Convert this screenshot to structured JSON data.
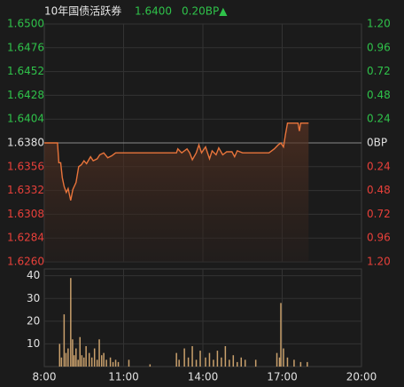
{
  "header": {
    "name": "10年国债活跃券",
    "price": "1.6400",
    "change": "0.20BP▲"
  },
  "chart_data": [
    {
      "type": "line",
      "xlim": [
        8,
        20
      ],
      "ylim": [
        1.626,
        1.65
      ],
      "yticks": [
        {
          "value": 1.65,
          "label": "1.6500"
        },
        1.6476,
        1.6452,
        1.6428,
        1.6404,
        {
          "value": 1.638,
          "label": "1.6380"
        },
        1.6356,
        1.6332,
        1.6308,
        1.6284,
        {
          "value": 1.626,
          "label": "1.6260"
        }
      ],
      "y2lim": [
        -1.2,
        1.2
      ],
      "y2ticks": [
        {
          "value": 1.2,
          "label": "1.20"
        },
        0.96,
        0.72,
        0.48,
        0.24,
        {
          "value": 0,
          "label": "0BP"
        },
        {
          "value": -0.24,
          "label": "0.24"
        },
        {
          "value": -0.48,
          "label": "0.48"
        },
        {
          "value": -0.72,
          "label": "0.72"
        },
        {
          "value": -0.96,
          "label": "0.96"
        },
        {
          "value": -1.2,
          "label": "1.20"
        }
      ],
      "up_color": "#2fc24a",
      "down_color": "#e8403a",
      "flat_color": "#e0e0e0",
      "color": "#e8743b",
      "grid": true,
      "x": [
        8.0,
        8.5,
        8.55,
        8.62,
        8.68,
        8.75,
        8.83,
        8.9,
        9.0,
        9.08,
        9.2,
        9.3,
        9.4,
        9.5,
        9.6,
        9.75,
        9.85,
        10.0,
        10.1,
        10.25,
        10.4,
        10.55,
        10.7,
        11.0,
        12.0,
        13.0,
        13.05,
        13.2,
        13.4,
        13.5,
        13.6,
        13.75,
        13.85,
        13.95,
        14.1,
        14.25,
        14.35,
        14.5,
        14.6,
        14.75,
        14.9,
        15.1,
        15.2,
        15.3,
        15.5,
        16.0,
        16.5,
        16.7,
        16.85,
        16.95,
        17.05,
        17.12,
        17.2,
        17.6,
        17.65,
        17.7,
        18.0
      ],
      "values": [
        1.638,
        1.638,
        1.636,
        1.636,
        1.6345,
        1.6336,
        1.633,
        1.6334,
        1.6322,
        1.6333,
        1.634,
        1.6356,
        1.6358,
        1.6362,
        1.6359,
        1.6366,
        1.6362,
        1.6364,
        1.6368,
        1.637,
        1.6365,
        1.6367,
        1.637,
        1.637,
        1.637,
        1.637,
        1.6374,
        1.637,
        1.6374,
        1.637,
        1.6363,
        1.637,
        1.6378,
        1.637,
        1.6376,
        1.6364,
        1.6372,
        1.6368,
        1.6375,
        1.6368,
        1.6371,
        1.6371,
        1.6366,
        1.6372,
        1.637,
        1.637,
        1.637,
        1.6374,
        1.6378,
        1.638,
        1.6376,
        1.6388,
        1.64,
        1.64,
        1.6392,
        1.64,
        1.64
      ]
    },
    {
      "type": "bar",
      "xlim": [
        8,
        20
      ],
      "xticks": [
        {
          "value": 8,
          "label": "8:00"
        },
        {
          "value": 11,
          "label": "11:00"
        },
        {
          "value": 14,
          "label": "14:00"
        },
        {
          "value": 17,
          "label": "17:00"
        },
        {
          "value": 20,
          "label": "20:00"
        }
      ],
      "ylim": [
        0,
        43
      ],
      "yticks": [
        10,
        20,
        30,
        40
      ],
      "color": "#c9a06c",
      "grid": true,
      "x": [
        8.58,
        8.65,
        8.75,
        8.82,
        8.9,
        9.0,
        9.07,
        9.13,
        9.2,
        9.28,
        9.35,
        9.42,
        9.5,
        9.58,
        9.7,
        9.8,
        9.9,
        10.0,
        10.08,
        10.17,
        10.25,
        10.35,
        10.5,
        10.6,
        10.7,
        10.8,
        11.2,
        12.0,
        13.0,
        13.1,
        13.3,
        13.45,
        13.6,
        13.75,
        13.9,
        14.1,
        14.25,
        14.4,
        14.55,
        14.7,
        14.85,
        15.0,
        15.15,
        15.3,
        15.45,
        15.6,
        16.0,
        16.8,
        16.9,
        16.95,
        17.05,
        17.2,
        17.45,
        17.7,
        17.95
      ],
      "values": [
        10,
        4,
        23,
        6,
        8,
        39,
        12,
        5,
        8,
        3,
        13,
        5,
        4,
        9,
        6,
        4,
        8,
        3,
        12,
        5,
        6,
        3,
        4,
        2,
        3,
        2,
        3,
        1,
        6,
        3,
        8,
        4,
        9,
        3,
        7,
        4,
        6,
        3,
        7,
        4,
        9,
        3,
        5,
        2,
        4,
        3,
        3,
        6,
        4,
        28,
        8,
        4,
        3,
        2,
        2
      ]
    }
  ]
}
